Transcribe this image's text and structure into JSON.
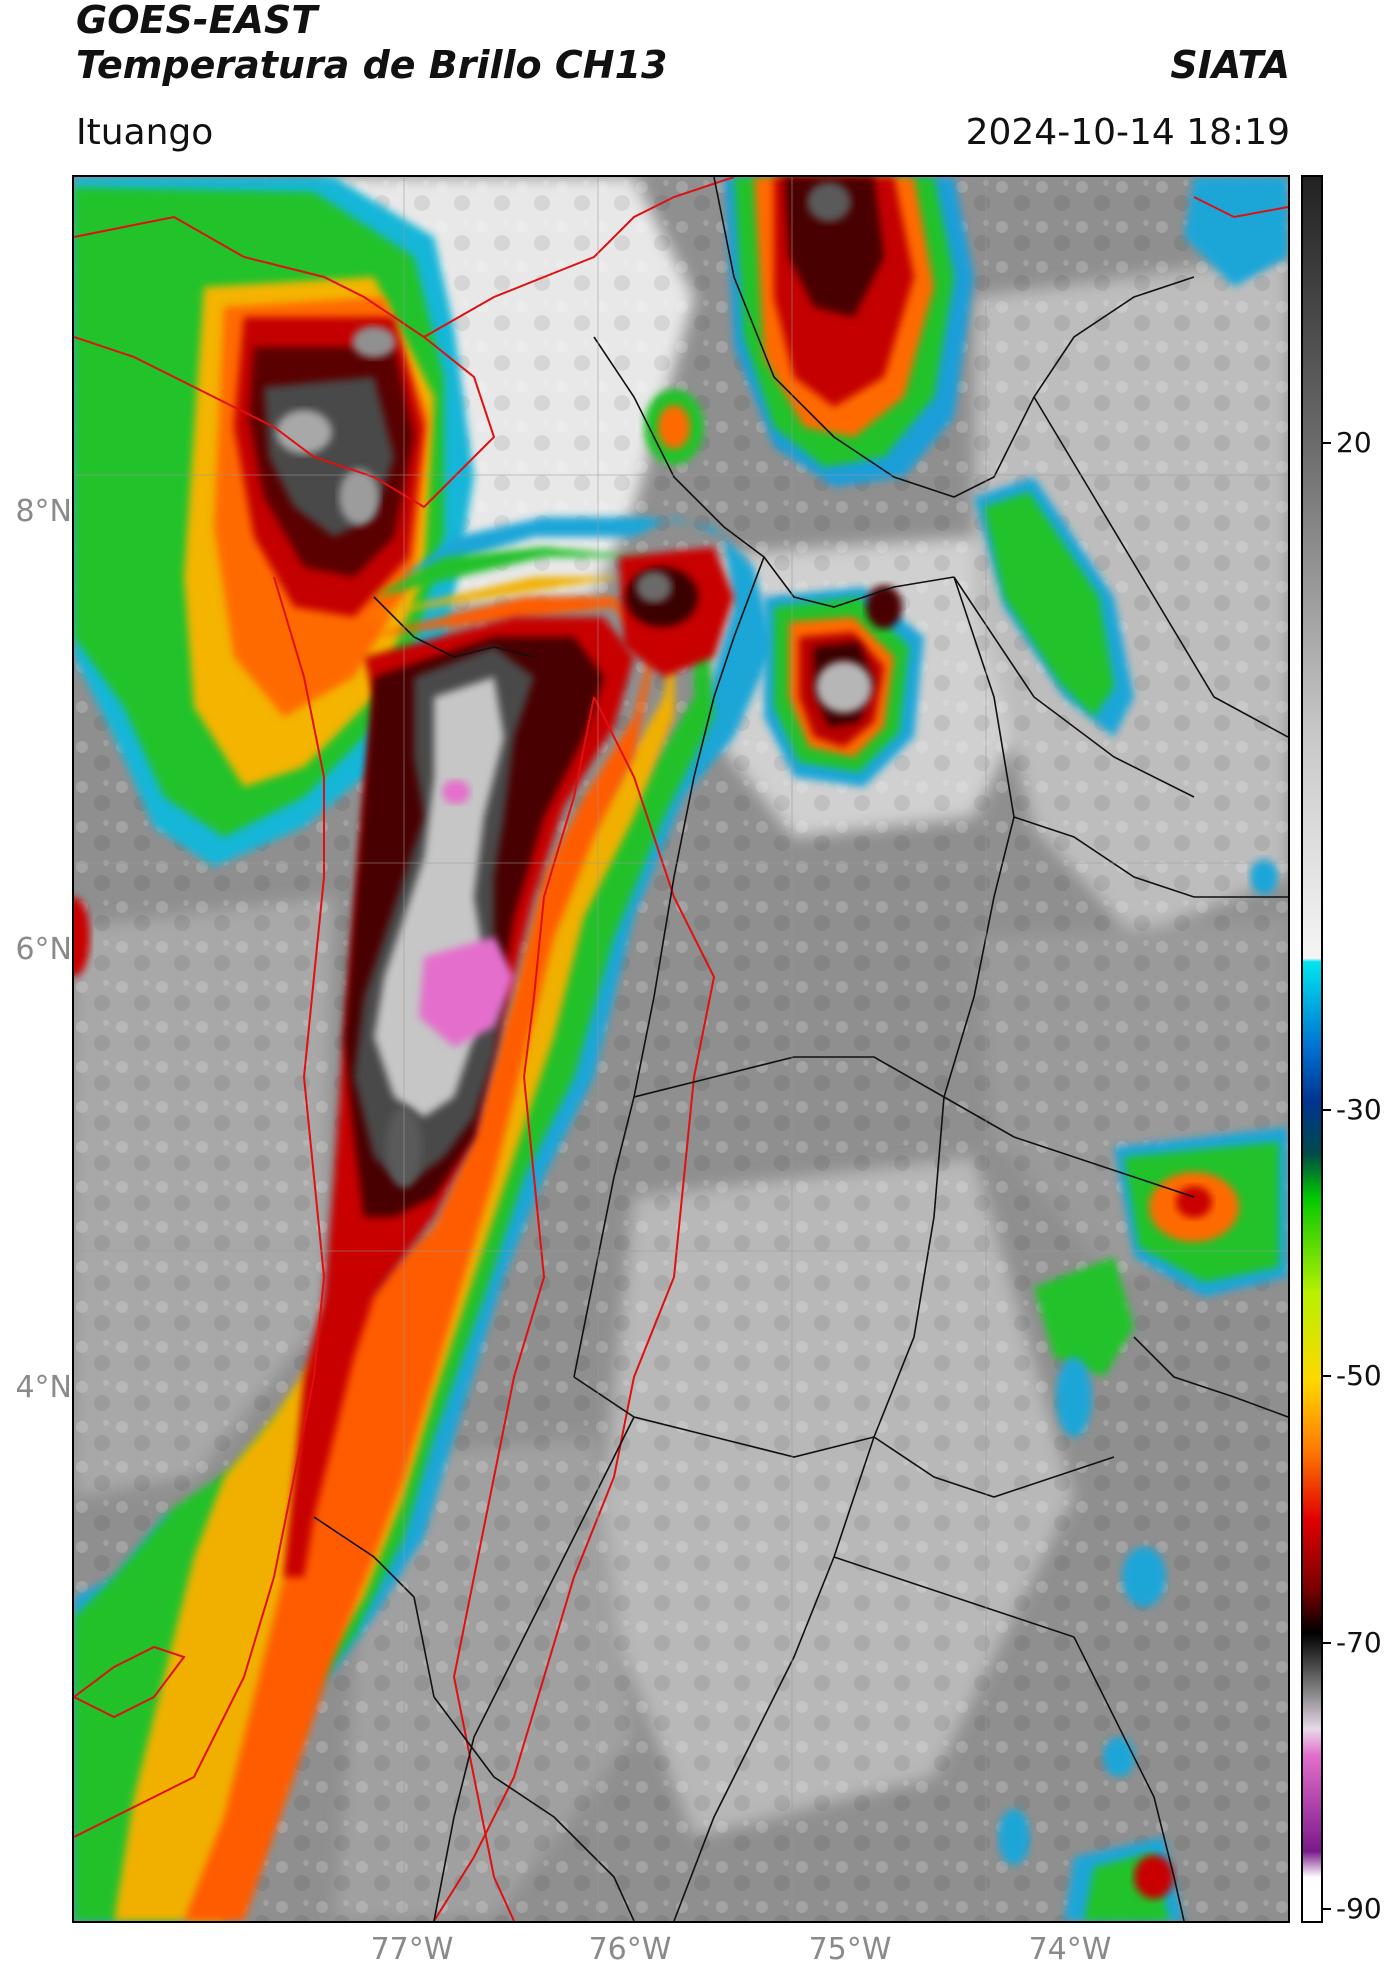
{
  "header": {
    "satellite": "GOES-EAST",
    "product": "Temperatura de Brillo CH13",
    "brand": "SIATA",
    "location": "Ituango",
    "datetime": "2024-10-14 18:19"
  },
  "map": {
    "latitude_labels": [
      "8°N",
      "6°N",
      "4°N"
    ],
    "longitude_labels": [
      "77°W",
      "76°W",
      "75°W",
      "74°W"
    ],
    "gridlines": true
  },
  "colorbar": {
    "tick_labels": [
      "20",
      "-30",
      "-50",
      "-70",
      "-90"
    ],
    "palette": {
      "warm_gray_light": "#f2f2f2",
      "warm_gray_dark": "#5a5a5a",
      "cyan": "#00d2e6",
      "blue": "#0034b4",
      "green": "#00c800",
      "yellow": "#ffe600",
      "orange": "#ff7800",
      "red": "#e60000",
      "dark_red": "#5a0000",
      "black": "#000000",
      "pink": "#e46ecc",
      "purple": "#7a1a8a"
    }
  },
  "legend_items": {
    "country_border_color": "#e01010",
    "department_border_color": "#000000"
  }
}
